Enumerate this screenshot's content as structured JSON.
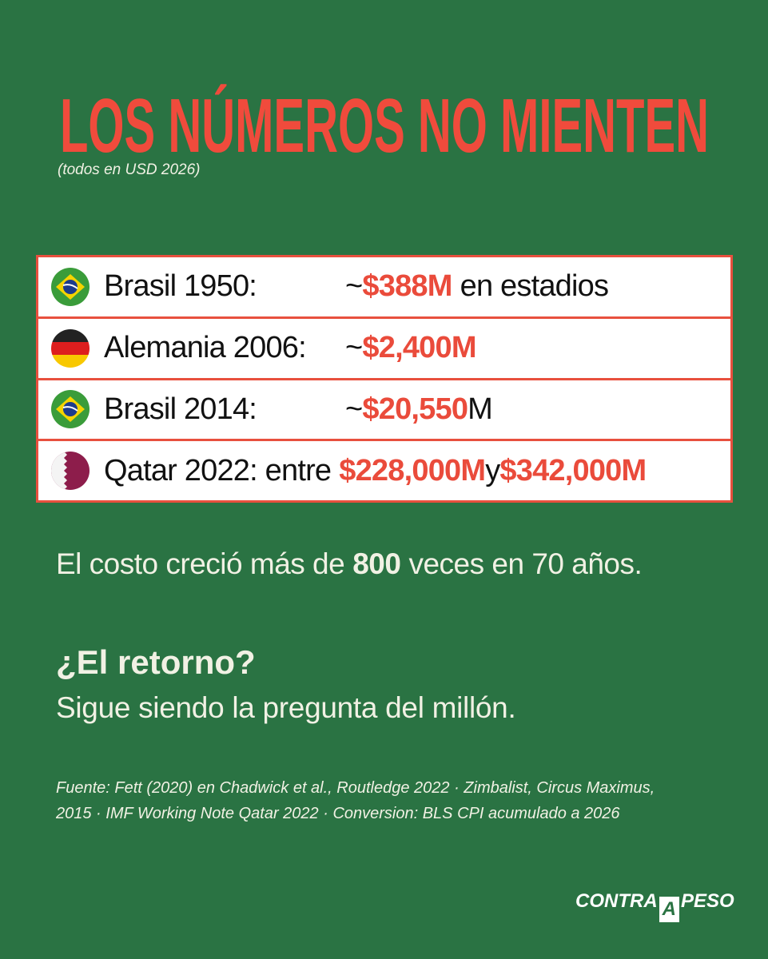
{
  "header": {
    "title": "LOS NÚMEROS NO MIENTEN",
    "subtitle": "(todos en USD 2026)"
  },
  "rows": [
    {
      "label": "Brasil 1950:",
      "parts": [
        {
          "text": "~"
        },
        {
          "text": "$388M",
          "highlight": true
        },
        {
          "text": "en estadios"
        }
      ]
    },
    {
      "label": "Alemania 2006:",
      "parts": [
        {
          "text": "~"
        },
        {
          "text": "$2,400M",
          "highlight": true
        }
      ]
    },
    {
      "label": "Brasil 2014:",
      "parts": [
        {
          "text": "~"
        },
        {
          "text": "$20,550",
          "highlight": true
        },
        {
          "text": "M"
        }
      ]
    },
    {
      "label": "Qatar 2022: entre",
      "parts": [
        {
          "text": "$228,000M",
          "highlight": true
        },
        {
          "text": "y"
        },
        {
          "text": "$342,000M",
          "highlight": true
        }
      ]
    }
  ],
  "statement": [
    {
      "text": "El costo creció más de"
    },
    {
      "text": "800",
      "bold": true
    },
    {
      "text": "veces en 70 años."
    }
  ],
  "question": "¿El retorno?",
  "answer": "Sigue siendo la pregunta del millón.",
  "source": "Fuente: Fett (2020) en Chadwick et al., Routledge 2022 · Zimbalist, Circus Maximus, 2015 · IMF Working Note Qatar 2022 · Conversion: BLS CPI acumulado a 2026",
  "logo": {
    "left": "CONTRA",
    "middle": "A",
    "right": "PESO"
  }
}
